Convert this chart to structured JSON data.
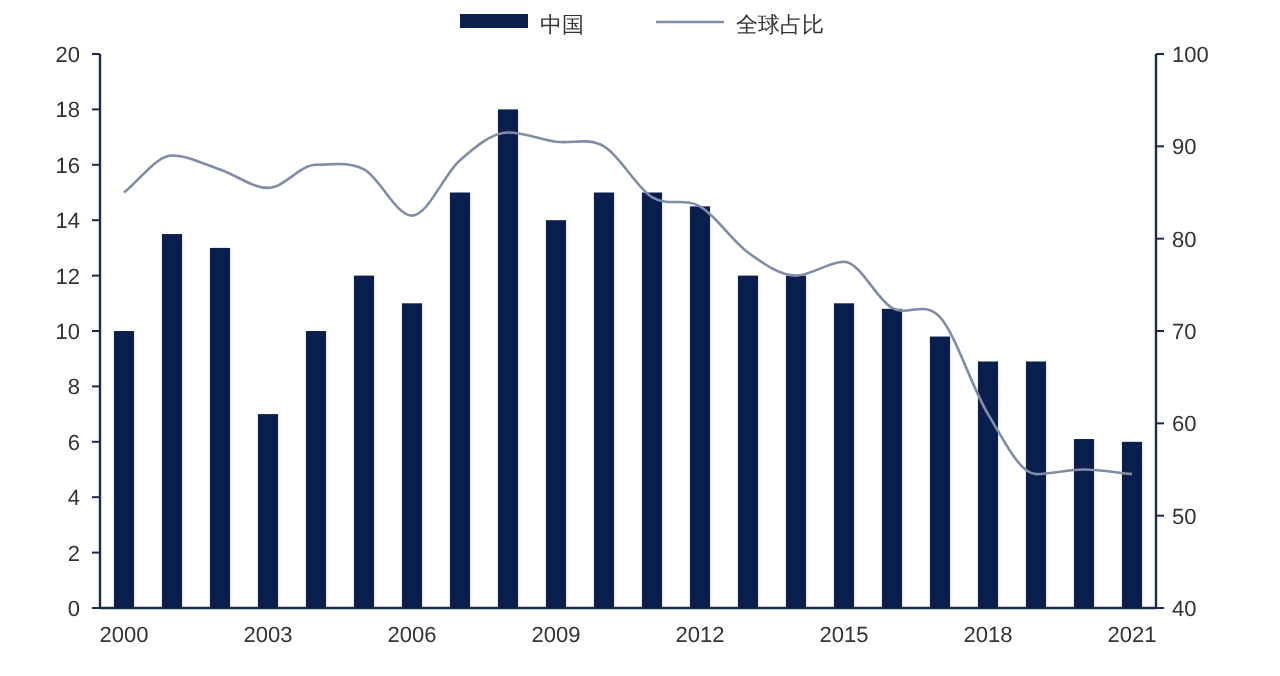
{
  "chart_data": {
    "type": "bar",
    "categories": [
      "2000",
      null,
      null,
      "2003",
      null,
      null,
      "2006",
      null,
      null,
      "2009",
      null,
      null,
      "2012",
      null,
      null,
      "2015",
      null,
      null,
      "2018",
      null,
      null,
      "2021"
    ],
    "series": [
      {
        "name": "中国",
        "color": "#0b1f4f",
        "values": [
          10,
          13.5,
          13,
          7,
          10,
          12,
          11,
          15,
          18,
          14,
          15,
          15,
          14.5,
          12,
          12,
          11,
          10.8,
          9.8,
          8.9,
          8.9,
          6.1,
          6.0
        ]
      },
      {
        "name": "全球占比",
        "type": "line",
        "axis": "y2",
        "color": "#7f8ea6",
        "values": [
          85,
          89,
          87.5,
          85.5,
          88,
          87.5,
          82.5,
          88.5,
          91.5,
          90.5,
          90,
          84.5,
          83.5,
          78.5,
          76,
          77.5,
          72.5,
          71.5,
          61,
          54.5,
          55,
          54.5
        ]
      }
    ],
    "ylim": [
      0,
      20
    ],
    "yticks": [
      0,
      2,
      4,
      6,
      8,
      10,
      12,
      14,
      16,
      18,
      20
    ],
    "y2lim": [
      40,
      100
    ],
    "y2ticks": [
      40,
      50,
      60,
      70,
      80,
      90,
      100
    ],
    "legend": "top"
  }
}
